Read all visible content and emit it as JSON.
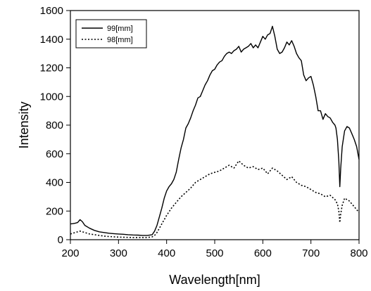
{
  "chart_data": {
    "type": "line",
    "title": "",
    "xlabel": "Wavelength[nm]",
    "ylabel": "Intensity",
    "xlim": [
      200,
      800
    ],
    "ylim": [
      0,
      1600
    ],
    "x_ticks": [
      200,
      300,
      400,
      500,
      600,
      700,
      800
    ],
    "y_ticks": [
      0,
      200,
      400,
      600,
      800,
      1000,
      1200,
      1400,
      1600
    ],
    "grid": false,
    "legend_position": "top-left",
    "series": [
      {
        "name": "99[mm]",
        "style": "solid",
        "color": "#000000",
        "x": [
          200,
          205,
          210,
          215,
          220,
          225,
          230,
          240,
          250,
          260,
          270,
          280,
          290,
          300,
          310,
          320,
          330,
          340,
          350,
          360,
          370,
          375,
          380,
          385,
          390,
          395,
          400,
          405,
          410,
          415,
          420,
          425,
          430,
          435,
          440,
          445,
          450,
          455,
          460,
          465,
          470,
          475,
          480,
          485,
          490,
          495,
          500,
          505,
          510,
          515,
          520,
          525,
          530,
          535,
          540,
          545,
          550,
          555,
          560,
          565,
          570,
          575,
          580,
          585,
          590,
          595,
          600,
          605,
          610,
          615,
          620,
          625,
          630,
          635,
          640,
          645,
          650,
          655,
          660,
          665,
          670,
          675,
          680,
          685,
          690,
          695,
          700,
          705,
          710,
          715,
          720,
          725,
          730,
          735,
          740,
          745,
          750,
          752,
          755,
          758,
          760,
          762,
          765,
          770,
          775,
          780,
          785,
          790,
          795,
          800
        ],
        "values": [
          110,
          112,
          115,
          120,
          140,
          125,
          100,
          80,
          65,
          55,
          50,
          45,
          42,
          40,
          38,
          35,
          33,
          32,
          30,
          30,
          35,
          60,
          100,
          160,
          220,
          290,
          340,
          370,
          390,
          420,
          470,
          560,
          640,
          700,
          780,
          810,
          850,
          900,
          940,
          990,
          1000,
          1040,
          1080,
          1110,
          1150,
          1180,
          1190,
          1220,
          1240,
          1250,
          1280,
          1300,
          1310,
          1300,
          1320,
          1330,
          1350,
          1310,
          1330,
          1340,
          1350,
          1370,
          1340,
          1360,
          1340,
          1380,
          1420,
          1400,
          1430,
          1440,
          1490,
          1420,
          1330,
          1300,
          1310,
          1340,
          1380,
          1360,
          1390,
          1350,
          1300,
          1270,
          1250,
          1150,
          1110,
          1130,
          1140,
          1080,
          1000,
          900,
          900,
          840,
          880,
          860,
          850,
          820,
          800,
          780,
          700,
          550,
          370,
          500,
          650,
          760,
          790,
          780,
          740,
          700,
          650,
          560
        ]
      },
      {
        "name": "98[mm]",
        "style": "dotted",
        "color": "#000000",
        "x": [
          200,
          210,
          220,
          230,
          240,
          250,
          260,
          270,
          280,
          290,
          300,
          310,
          320,
          330,
          340,
          350,
          360,
          370,
          375,
          380,
          385,
          390,
          395,
          400,
          410,
          420,
          430,
          440,
          450,
          460,
          470,
          480,
          490,
          500,
          510,
          520,
          530,
          540,
          550,
          560,
          570,
          580,
          590,
          600,
          610,
          620,
          630,
          640,
          650,
          660,
          670,
          680,
          690,
          700,
          710,
          720,
          730,
          740,
          750,
          755,
          758,
          760,
          762,
          765,
          770,
          780,
          790,
          800
        ],
        "values": [
          40,
          50,
          60,
          50,
          40,
          35,
          30,
          25,
          22,
          20,
          18,
          17,
          16,
          15,
          15,
          15,
          15,
          20,
          30,
          50,
          80,
          110,
          140,
          170,
          220,
          260,
          300,
          330,
          360,
          400,
          420,
          440,
          460,
          470,
          480,
          500,
          520,
          500,
          550,
          520,
          500,
          510,
          490,
          500,
          460,
          500,
          480,
          450,
          420,
          440,
          400,
          380,
          370,
          350,
          330,
          320,
          300,
          310,
          280,
          250,
          200,
          120,
          180,
          240,
          290,
          270,
          230,
          190
        ]
      }
    ]
  }
}
